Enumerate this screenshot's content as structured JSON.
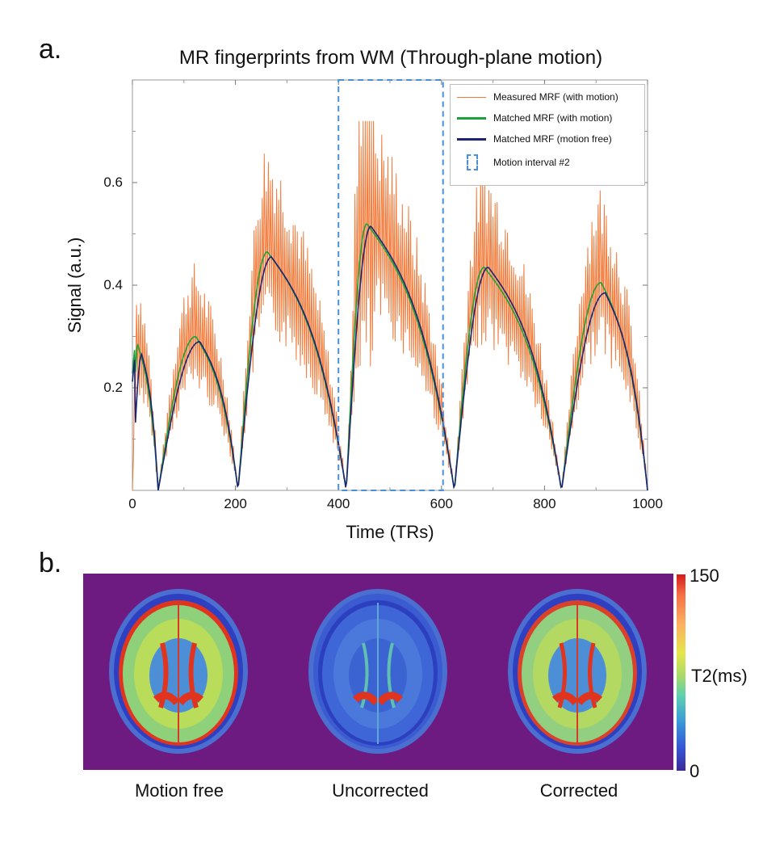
{
  "panel_a_label": "a.",
  "panel_b_label": "b.",
  "colors": {
    "measured": "#f27a3a",
    "matched_motion": "#1aa33a",
    "matched_free": "#1c2474",
    "interval": "#4a90d9",
    "heatmap_bg": "#6d1a81"
  },
  "chart_data": {
    "type": "line",
    "title": "MR fingerprints from WM (Through-plane motion)",
    "xlabel": "Time (TRs)",
    "ylabel": "Signal (a.u.)",
    "xlim": [
      0,
      1000
    ],
    "ylim": [
      0,
      0.8
    ],
    "x_ticks": [
      0,
      200,
      400,
      600,
      800,
      1000
    ],
    "x_tick_labels": [
      "0",
      "200",
      "400",
      "600",
      "800",
      "1000"
    ],
    "y_ticks": [
      0.2,
      0.4,
      0.6
    ],
    "y_tick_labels": [
      "0.2",
      "0.4",
      "0.6"
    ],
    "segments": [
      {
        "start": 0,
        "end": 50,
        "peak_x": 10,
        "peak_motion": 0.285,
        "peak_free": 0.265
      },
      {
        "start": 50,
        "end": 205,
        "peak_x": 123,
        "peak_motion": 0.3,
        "peak_free": 0.29
      },
      {
        "start": 205,
        "end": 415,
        "peak_x": 262,
        "peak_motion": 0.465,
        "peak_free": 0.455
      },
      {
        "start": 415,
        "end": 625,
        "peak_x": 455,
        "peak_motion": 0.52,
        "peak_free": 0.515
      },
      {
        "start": 625,
        "end": 833,
        "peak_x": 683,
        "peak_motion": 0.435,
        "peak_free": 0.435
      },
      {
        "start": 833,
        "end": 1000,
        "peak_x": 910,
        "peak_motion": 0.405,
        "peak_free": 0.385
      }
    ],
    "measured_peak_max": 0.72,
    "motion_interval": {
      "label": "Motion interval #2",
      "x_start": 400,
      "x_end": 603
    },
    "series": [
      {
        "name": "Measured MRF (with motion)",
        "color": "#f27a3a"
      },
      {
        "name": "Matched MRF (with motion)",
        "color": "#1aa33a"
      },
      {
        "name": "Matched MRF (motion free)",
        "color": "#1c2474"
      }
    ],
    "legend_position": "top-right"
  },
  "heatmap": {
    "colorbar_max": "150",
    "colorbar_min": "0",
    "colorbar_label": "T2(ms)",
    "captions": [
      "Motion free",
      "Uncorrected",
      "Corrected"
    ]
  }
}
